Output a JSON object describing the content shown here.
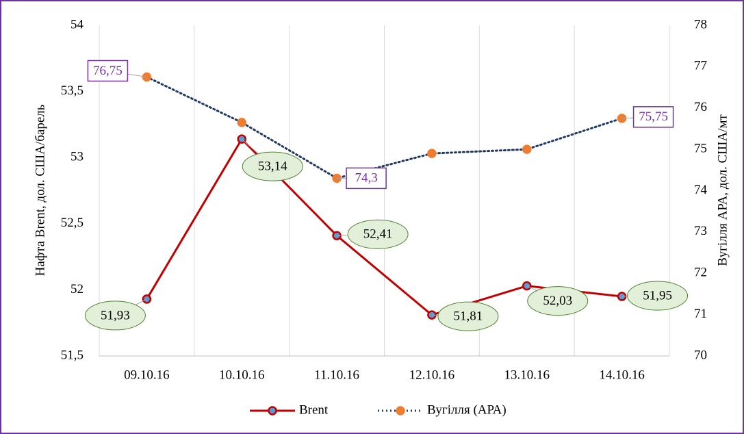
{
  "chart_data": {
    "type": "line",
    "categories": [
      "09.10.16",
      "10.10.16",
      "11.10.16",
      "12.10.16",
      "13.10.16",
      "14.10.16"
    ],
    "ylabel": "Нафта  Brent, дол. США/барель",
    "y2label": "Вугілля АРА, дол. США/мт",
    "ylim": [
      51.5,
      54
    ],
    "yticks": [
      {
        "value": 51.5,
        "label": "51,5"
      },
      52,
      {
        "value": 52.5,
        "label": "52,5"
      },
      53,
      {
        "value": 53.5,
        "label": "53,5"
      },
      54
    ],
    "y2lim": [
      70,
      78
    ],
    "y2ticks": [
      70,
      71,
      72,
      73,
      74,
      75,
      76,
      77,
      78
    ],
    "grid": true,
    "legend": "bottom",
    "series": [
      {
        "name": "Brent",
        "color": "#c00000",
        "marker_color": "#5b9bd5",
        "values": [
          51.93,
          53.14,
          52.41,
          51.81,
          52.03,
          51.95
        ],
        "value_labels": [
          "51,93",
          "53,14",
          "52,41",
          "51,81",
          "52,03",
          "51,95"
        ]
      },
      {
        "name": "Вугілля (АРА)",
        "color": "#1f3864",
        "marker_color": "#ed7d31",
        "axis": "y2",
        "dashed": true,
        "values": [
          76.75,
          75.65,
          74.3,
          74.9,
          75.0,
          75.75
        ],
        "value_labels": [
          "76,75",
          null,
          "74,3",
          null,
          null,
          "75,75"
        ]
      }
    ]
  }
}
